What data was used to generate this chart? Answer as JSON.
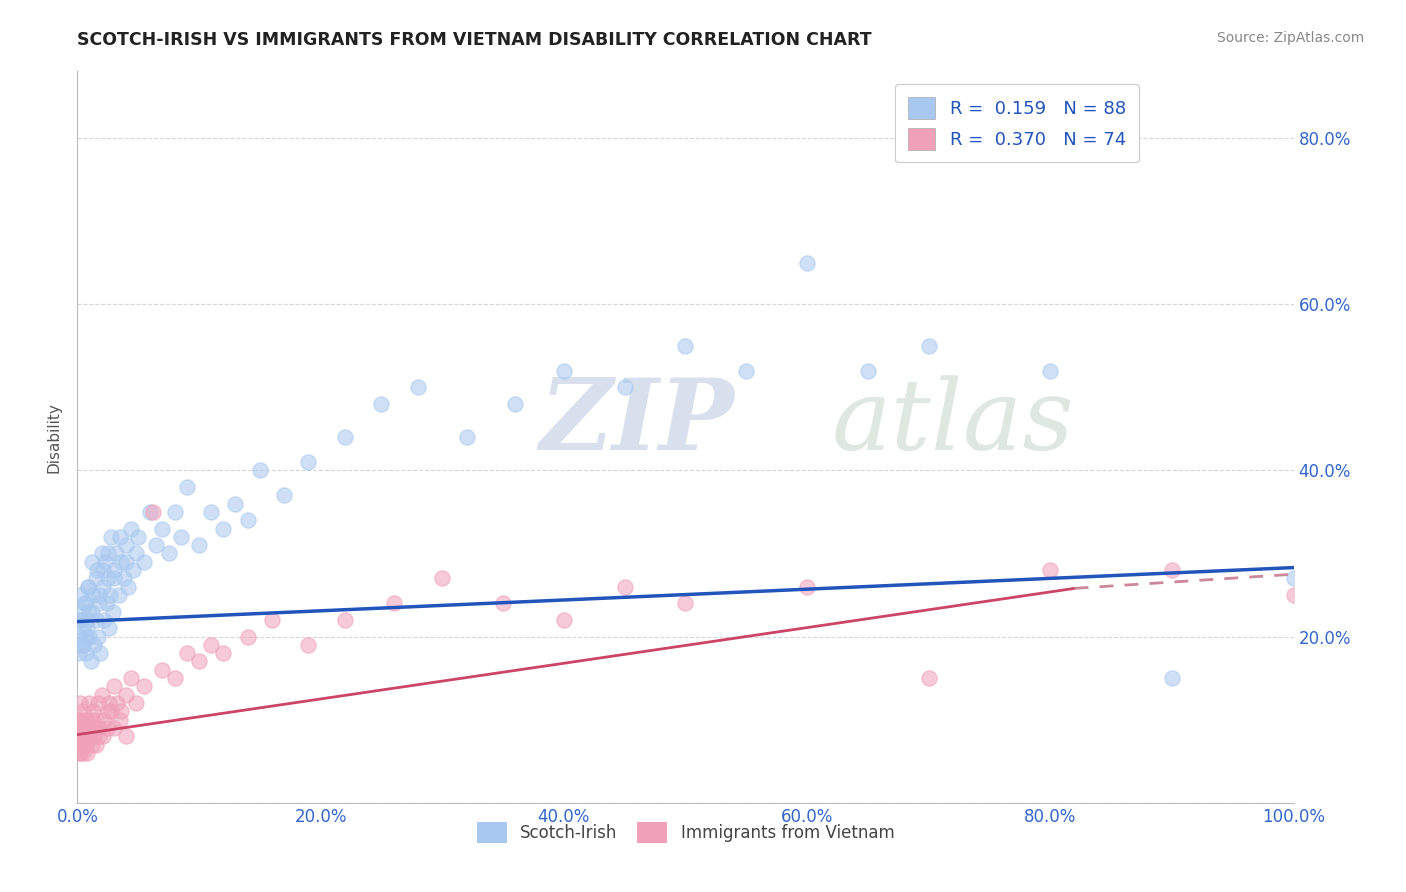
{
  "title": "SCOTCH-IRISH VS IMMIGRANTS FROM VIETNAM DISABILITY CORRELATION CHART",
  "source": "Source: ZipAtlas.com",
  "ylabel": "Disability",
  "xlim": [
    0.0,
    1.0
  ],
  "ylim": [
    0.0,
    0.88
  ],
  "xticks": [
    0.0,
    0.2,
    0.4,
    0.6,
    0.8,
    1.0
  ],
  "xtick_labels": [
    "0.0%",
    "20.0%",
    "40.0%",
    "60.0%",
    "80.0%",
    "100.0%"
  ],
  "yticks": [
    0.0,
    0.2,
    0.4,
    0.6,
    0.8
  ],
  "ytick_labels_right": [
    "",
    "20.0%",
    "40.0%",
    "60.0%",
    "80.0%"
  ],
  "series1_color": "#a8c8f0",
  "series2_color": "#f0a0b8",
  "series1_label": "Scotch-Irish",
  "series2_label": "Immigrants from Vietnam",
  "R1": 0.159,
  "N1": 88,
  "R2": 0.37,
  "N2": 74,
  "line1_color": "#2255bb",
  "line2_color": "#cc4466",
  "line2_dash_color": "#cc8899",
  "background_color": "#ffffff",
  "grid_color": "#cccccc",
  "title_color": "#222222",
  "source_color": "#888888",
  "legend_text_color": "#2255bb",
  "ylabel_color": "#555555",
  "tick_color": "#3366cc",
  "series1_x": [
    0.003,
    0.005,
    0.006,
    0.007,
    0.008,
    0.009,
    0.01,
    0.011,
    0.012,
    0.013,
    0.014,
    0.015,
    0.016,
    0.017,
    0.018,
    0.019,
    0.02,
    0.021,
    0.022,
    0.023,
    0.024,
    0.025,
    0.026,
    0.027,
    0.028,
    0.029,
    0.03,
    0.032,
    0.034,
    0.036,
    0.038,
    0.04,
    0.042,
    0.044,
    0.046,
    0.048,
    0.05,
    0.055,
    0.06,
    0.065,
    0.07,
    0.075,
    0.08,
    0.085,
    0.09,
    0.1,
    0.11,
    0.12,
    0.13,
    0.14,
    0.15,
    0.17,
    0.19,
    0.22,
    0.25,
    0.28,
    0.32,
    0.36,
    0.4,
    0.45,
    0.5,
    0.55,
    0.6,
    0.65,
    0.7,
    0.8,
    0.9,
    1.0,
    0.001,
    0.001,
    0.002,
    0.002,
    0.003,
    0.004,
    0.005,
    0.006,
    0.007,
    0.008,
    0.009,
    0.01,
    0.012,
    0.015,
    0.018,
    0.021,
    0.025,
    0.03,
    0.035,
    0.04
  ],
  "series1_y": [
    0.22,
    0.19,
    0.24,
    0.18,
    0.21,
    0.26,
    0.2,
    0.17,
    0.23,
    0.25,
    0.19,
    0.22,
    0.28,
    0.2,
    0.24,
    0.18,
    0.3,
    0.26,
    0.22,
    0.29,
    0.24,
    0.27,
    0.21,
    0.25,
    0.32,
    0.23,
    0.28,
    0.3,
    0.25,
    0.29,
    0.27,
    0.31,
    0.26,
    0.33,
    0.28,
    0.3,
    0.32,
    0.29,
    0.35,
    0.31,
    0.33,
    0.3,
    0.35,
    0.32,
    0.38,
    0.31,
    0.35,
    0.33,
    0.36,
    0.34,
    0.4,
    0.37,
    0.41,
    0.44,
    0.48,
    0.5,
    0.44,
    0.48,
    0.52,
    0.5,
    0.55,
    0.52,
    0.65,
    0.52,
    0.55,
    0.52,
    0.15,
    0.27,
    0.18,
    0.22,
    0.2,
    0.25,
    0.19,
    0.23,
    0.21,
    0.24,
    0.2,
    0.22,
    0.26,
    0.23,
    0.29,
    0.27,
    0.25,
    0.28,
    0.3,
    0.27,
    0.32,
    0.29
  ],
  "series2_x": [
    0.001,
    0.001,
    0.002,
    0.002,
    0.003,
    0.003,
    0.004,
    0.005,
    0.005,
    0.006,
    0.007,
    0.008,
    0.009,
    0.01,
    0.011,
    0.012,
    0.013,
    0.014,
    0.015,
    0.016,
    0.017,
    0.018,
    0.02,
    0.022,
    0.024,
    0.026,
    0.028,
    0.03,
    0.033,
    0.036,
    0.04,
    0.044,
    0.048,
    0.055,
    0.062,
    0.07,
    0.08,
    0.09,
    0.1,
    0.11,
    0.12,
    0.14,
    0.16,
    0.19,
    0.22,
    0.26,
    0.3,
    0.35,
    0.4,
    0.45,
    0.5,
    0.6,
    0.7,
    0.8,
    0.9,
    1.0,
    0.001,
    0.002,
    0.003,
    0.004,
    0.005,
    0.006,
    0.007,
    0.008,
    0.009,
    0.01,
    0.012,
    0.015,
    0.018,
    0.021,
    0.025,
    0.03,
    0.035,
    0.04
  ],
  "series2_y": [
    0.1,
    0.06,
    0.08,
    0.12,
    0.07,
    0.1,
    0.08,
    0.06,
    0.11,
    0.09,
    0.07,
    0.1,
    0.08,
    0.12,
    0.09,
    0.07,
    0.11,
    0.08,
    0.1,
    0.09,
    0.12,
    0.08,
    0.13,
    0.1,
    0.09,
    0.12,
    0.11,
    0.14,
    0.12,
    0.11,
    0.13,
    0.15,
    0.12,
    0.14,
    0.35,
    0.16,
    0.15,
    0.18,
    0.17,
    0.19,
    0.18,
    0.2,
    0.22,
    0.19,
    0.22,
    0.24,
    0.27,
    0.24,
    0.22,
    0.26,
    0.24,
    0.26,
    0.15,
    0.28,
    0.28,
    0.25,
    0.07,
    0.06,
    0.08,
    0.09,
    0.07,
    0.1,
    0.08,
    0.06,
    0.09,
    0.08,
    0.1,
    0.07,
    0.09,
    0.08,
    0.11,
    0.09,
    0.1,
    0.08
  ],
  "line1_x0": 0.0,
  "line1_y0": 0.218,
  "line1_x1": 1.0,
  "line1_y1": 0.283,
  "line2_x0": 0.0,
  "line2_y0": 0.082,
  "line2_x1": 0.82,
  "line2_y1": 0.258,
  "line2_dash_x0": 0.82,
  "line2_dash_y0": 0.258,
  "line2_dash_x1": 1.0,
  "line2_dash_y1": 0.275
}
